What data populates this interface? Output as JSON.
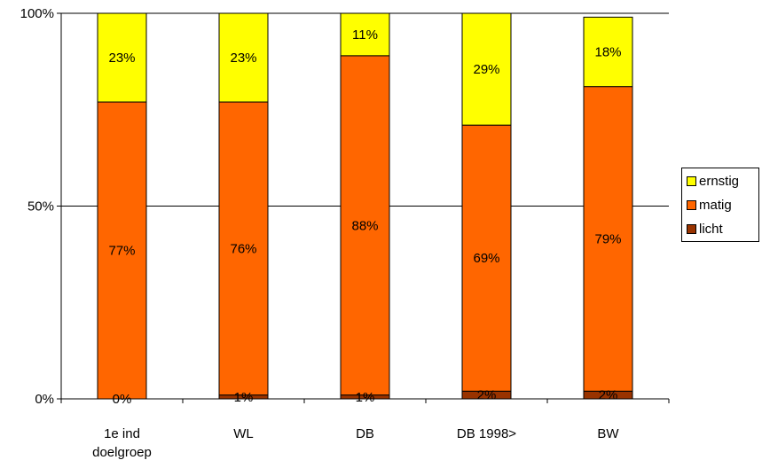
{
  "chart_data": {
    "type": "bar",
    "stacked": true,
    "percent_stacked": true,
    "categories": [
      [
        "1e ind",
        "doelgroep"
      ],
      [
        "WL"
      ],
      [
        "DB"
      ],
      [
        "DB 1998>"
      ],
      [
        "BW"
      ]
    ],
    "series": [
      {
        "name": "licht",
        "color": "#993300",
        "values": [
          0,
          1,
          1,
          2,
          2
        ],
        "labels": [
          "0%",
          "1%",
          "1%",
          "2%",
          "2%"
        ]
      },
      {
        "name": "matig",
        "color": "#ff6600",
        "values": [
          77,
          76,
          88,
          69,
          79
        ],
        "labels": [
          "77%",
          "76%",
          "88%",
          "69%",
          "79%"
        ]
      },
      {
        "name": "ernstig",
        "color": "#ffff00",
        "values": [
          23,
          23,
          11,
          29,
          18
        ],
        "labels": [
          "23%",
          "23%",
          "11%",
          "29%",
          "18%"
        ]
      }
    ],
    "y_ticks": [
      "0%",
      "50%",
      "100%"
    ],
    "ylim": [
      0,
      100
    ],
    "grid": true,
    "legend_position": "right",
    "legend_order": [
      "ernstig",
      "matig",
      "licht"
    ]
  }
}
